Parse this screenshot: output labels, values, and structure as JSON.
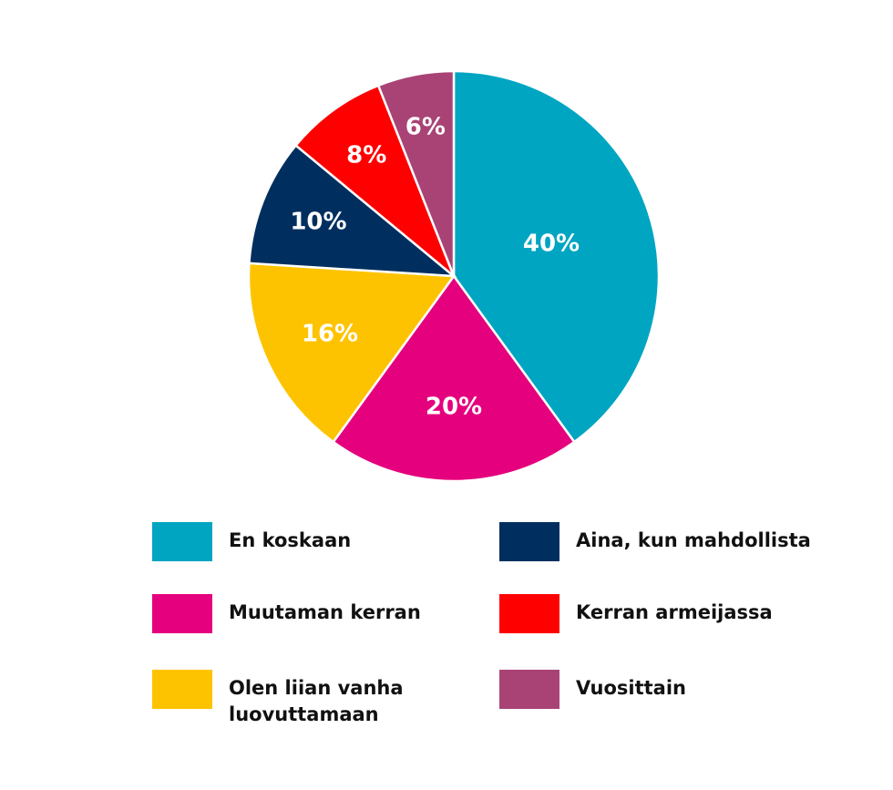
{
  "chart_data": {
    "type": "pie",
    "categories": [
      "En koskaan",
      "Muutaman kerran",
      "Olen liian vanha luovuttamaan",
      "Aina, kun mahdollista",
      "Kerran armeijassa",
      "Vuosittain"
    ],
    "values": [
      40,
      20,
      16,
      10,
      8,
      6
    ],
    "value_labels": [
      "40%",
      "20%",
      "16%",
      "10%",
      "8%",
      "6%"
    ],
    "colors": [
      "#00a5c2",
      "#e5007e",
      "#fdc300",
      "#002f5f",
      "#ff0000",
      "#a94375"
    ],
    "legend": "bottom"
  }
}
